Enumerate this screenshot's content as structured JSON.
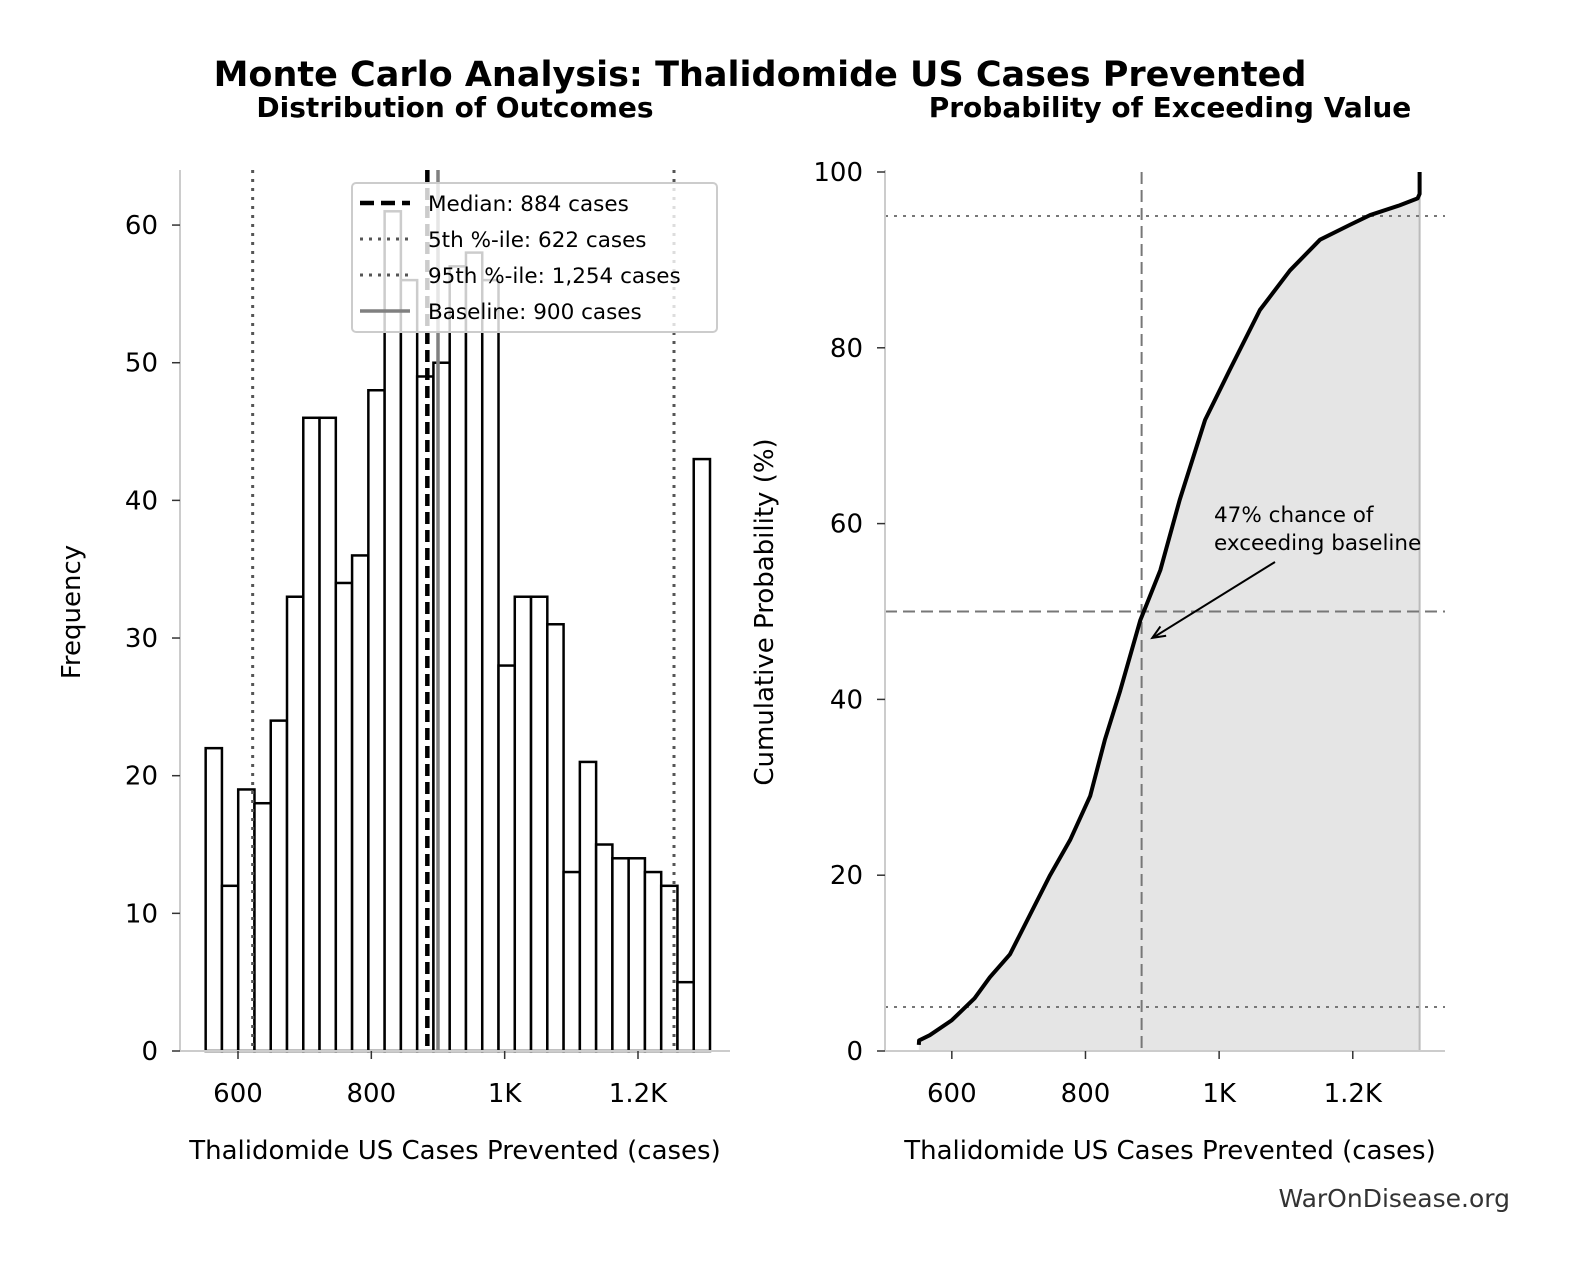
{
  "title": "Monte Carlo Analysis: Thalidomide US Cases Prevented",
  "watermark": "WarOnDisease.org",
  "colors": {
    "bar_edge": "#000000",
    "bar_fill": "#ffffff",
    "median": "#000000",
    "percentile": "#555555",
    "baseline": "#808080",
    "cdf_fill": "#e5e5e5",
    "spine": "#cccccc"
  },
  "chart_data": [
    {
      "type": "bar",
      "subtype": "histogram",
      "title": "Distribution of Outcomes",
      "xlabel": "Thalidomide US Cases Prevented (cases)",
      "ylabel": "Frequency",
      "xlim": [
        513,
        1338
      ],
      "ylim": [
        0,
        64
      ],
      "xticks": [
        600,
        800,
        1000,
        1200
      ],
      "xtick_labels": [
        "600",
        "800",
        "1K",
        "1.2K"
      ],
      "yticks": [
        0,
        10,
        20,
        30,
        40,
        50,
        60
      ],
      "ytick_labels": [
        "0",
        "10",
        "20",
        "30",
        "40",
        "50",
        "60"
      ],
      "bin_range": [
        551.5,
        1308
      ],
      "counts": [
        22,
        12,
        19,
        18,
        24,
        33,
        46,
        46,
        34,
        36,
        48,
        61,
        56,
        49,
        50,
        57,
        58,
        56,
        28,
        33,
        33,
        31,
        13,
        21,
        15,
        14,
        14,
        13,
        12,
        5,
        43
      ],
      "grid": false,
      "legend_position": "top-right",
      "reference_lines": [
        {
          "label": "Median: 884 cases",
          "value": 884,
          "style": "dashed"
        },
        {
          "label": "5th %-ile: 622 cases",
          "value": 622,
          "style": "dotted"
        },
        {
          "label": "95th %-ile: 1,254 cases",
          "value": 1254,
          "style": "dotted"
        },
        {
          "label": "Baseline: 900 cases",
          "value": 900,
          "style": "solid"
        }
      ]
    },
    {
      "type": "area",
      "title": "Probability of Exceeding Value",
      "xlabel": "Thalidomide US Cases Prevented (cases)",
      "ylabel": "Cumulative Probability (%)",
      "xlim": [
        500,
        1338
      ],
      "ylim": [
        0,
        100
      ],
      "xticks": [
        600,
        800,
        1000,
        1200
      ],
      "xtick_labels": [
        "600",
        "800",
        "1K",
        "1.2K"
      ],
      "yticks": [
        0,
        20,
        40,
        60,
        80,
        100
      ],
      "ytick_labels": [
        "0",
        "20",
        "40",
        "60",
        "80",
        "100"
      ],
      "grid": false,
      "x": [
        550.6,
        551,
        567,
        600,
        634,
        657,
        687,
        717,
        747,
        777,
        807,
        829,
        852,
        882,
        912,
        941,
        979,
        1016,
        1061,
        1106,
        1151,
        1196,
        1226,
        1270,
        1297,
        1300,
        1300
      ],
      "y": [
        0.7,
        1.2,
        1.8,
        3.5,
        6,
        8.4,
        11,
        15.5,
        20,
        24,
        29,
        35.4,
        41,
        49,
        54.7,
        62.7,
        71.8,
        77.5,
        84.3,
        88.8,
        92.3,
        94,
        95.1,
        96.2,
        97,
        97.5,
        100
      ],
      "hlines": [
        {
          "value": 95,
          "style": "dotted"
        },
        {
          "value": 50,
          "style": "dashed"
        },
        {
          "value": 5,
          "style": "dotted"
        }
      ],
      "vlines": [
        {
          "value": 884,
          "style": "dashed"
        }
      ],
      "annotation": {
        "lines": [
          "47% chance of",
          "exceeding baseline"
        ],
        "point": [
          900,
          47
        ]
      }
    }
  ]
}
